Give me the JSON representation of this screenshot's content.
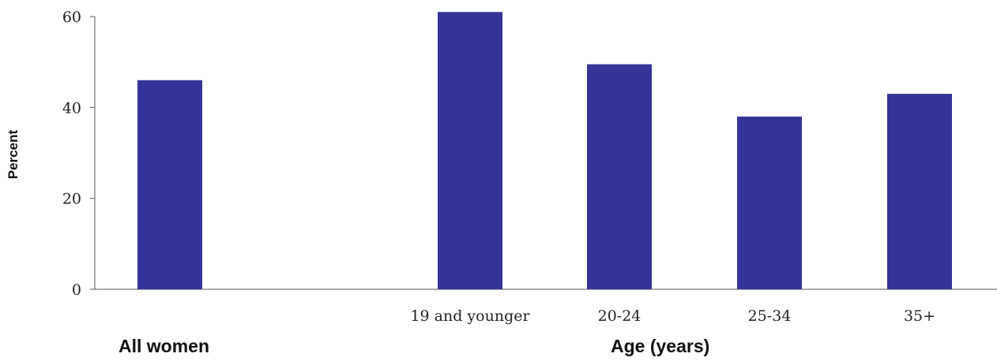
{
  "chart_data": {
    "type": "bar",
    "categories": [
      "All women",
      "19 and younger",
      "20-24",
      "25-34",
      "35+"
    ],
    "category_labels": [
      "",
      "19 and younger",
      "20-24",
      "25-34",
      "35+"
    ],
    "values": [
      46,
      61,
      49.5,
      38,
      43
    ],
    "ylabel": "Percent",
    "ylim": [
      0,
      60
    ],
    "yticks": [
      0,
      20,
      40,
      60
    ],
    "ytick_labels": [
      "0",
      "20",
      "40",
      "60"
    ],
    "group_labels": [
      "All women",
      "Age (years)"
    ],
    "grid": false,
    "bar_color": "#353499"
  }
}
